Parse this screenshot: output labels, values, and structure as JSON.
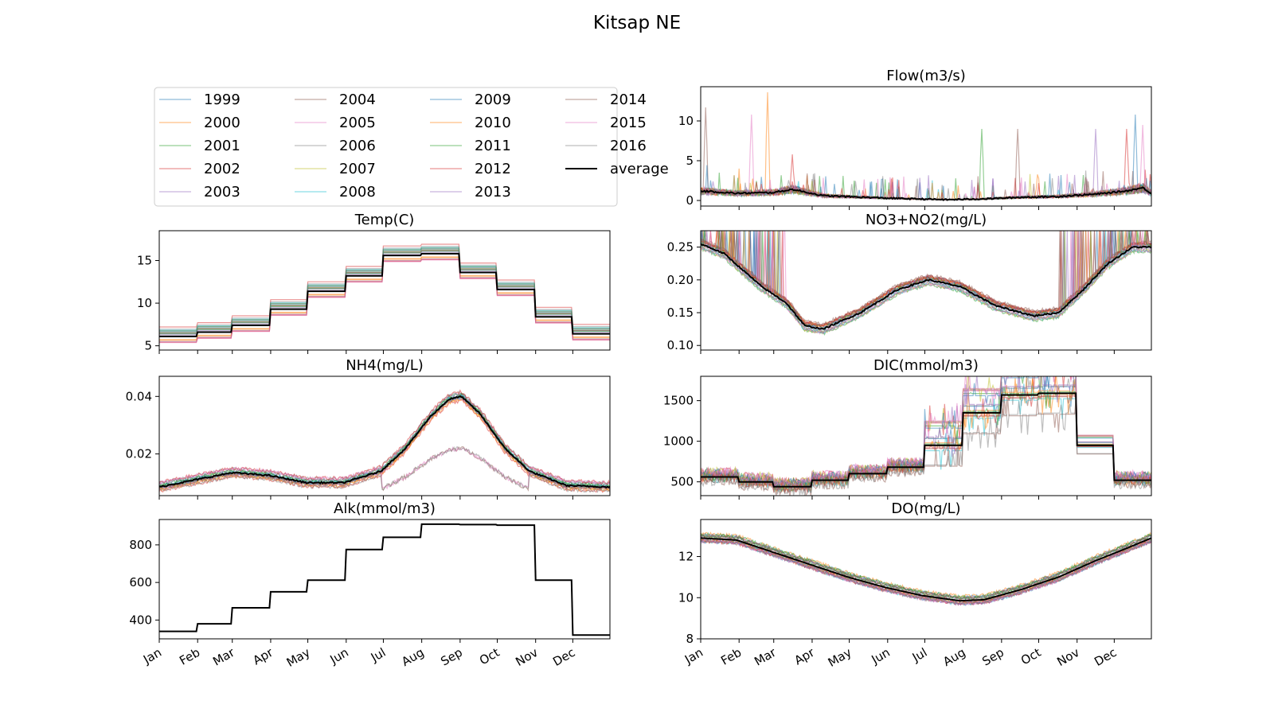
{
  "suptitle": "Kitsap NE",
  "chart_data": [
    {
      "panel": "legend",
      "type": "legend",
      "entries": [
        "1999",
        "2000",
        "2001",
        "2002",
        "2003",
        "2004",
        "2005",
        "2006",
        "2007",
        "2008",
        "2009",
        "2010",
        "2011",
        "2012",
        "2013",
        "2014",
        "2015",
        "2016",
        "average"
      ]
    },
    {
      "panel": "temp",
      "type": "line",
      "title": "Temp(C)",
      "ylim": [
        4.5,
        18.5
      ],
      "yticks": [
        5,
        10,
        15
      ],
      "x_unit": "day of year",
      "xlim": [
        1,
        365
      ],
      "average_steps": [
        6.1,
        6.6,
        7.4,
        9.3,
        11.4,
        13.2,
        15.6,
        15.8,
        13.6,
        11.6,
        8.4,
        6.4
      ],
      "year_spread": 1.4,
      "show_xticklabels": false
    },
    {
      "panel": "flow",
      "type": "line",
      "title": "Flow(m3/s)",
      "ylim": [
        -0.7,
        14.3
      ],
      "yticks": [
        0,
        5,
        10
      ],
      "x_unit": "day of year",
      "xlim": [
        1,
        365
      ],
      "average_profile": [
        [
          1,
          1.2
        ],
        [
          30,
          0.9
        ],
        [
          60,
          1.0
        ],
        [
          75,
          1.4
        ],
        [
          100,
          0.6
        ],
        [
          150,
          0.3
        ],
        [
          200,
          0.1
        ],
        [
          230,
          0.2
        ],
        [
          260,
          0.4
        ],
        [
          290,
          0.5
        ],
        [
          320,
          0.8
        ],
        [
          345,
          1.2
        ],
        [
          358,
          1.6
        ],
        [
          365,
          0.9
        ]
      ],
      "peaks": [
        [
          42,
          10.8
        ],
        [
          55,
          13.6
        ],
        [
          75,
          5.8
        ],
        [
          228,
          9.0
        ],
        [
          257,
          9.0
        ],
        [
          320,
          9.0
        ],
        [
          345,
          9.0
        ],
        [
          352,
          10.8
        ],
        [
          358,
          9.5
        ],
        [
          5,
          11.7
        ]
      ],
      "show_xticklabels": false
    },
    {
      "panel": "nh4",
      "type": "line",
      "title": "NH4(mg/L)",
      "ylim": [
        0.0055,
        0.047
      ],
      "yticks": [
        0.02,
        0.04
      ],
      "x_unit": "day of year",
      "xlim": [
        1,
        365
      ],
      "average_profile": [
        [
          1,
          0.0085
        ],
        [
          30,
          0.011
        ],
        [
          60,
          0.0135
        ],
        [
          90,
          0.0125
        ],
        [
          120,
          0.01
        ],
        [
          150,
          0.01
        ],
        [
          180,
          0.014
        ],
        [
          200,
          0.022
        ],
        [
          220,
          0.033
        ],
        [
          235,
          0.039
        ],
        [
          245,
          0.04
        ],
        [
          260,
          0.034
        ],
        [
          280,
          0.022
        ],
        [
          300,
          0.014
        ],
        [
          330,
          0.009
        ],
        [
          365,
          0.0085
        ]
      ],
      "show_xticklabels": false
    },
    {
      "panel": "no3",
      "type": "line",
      "title": "NO3+NO2(mg/L)",
      "ylim": [
        0.093,
        0.275
      ],
      "yticks": [
        0.1,
        0.15,
        0.2,
        0.25
      ],
      "x_unit": "day of year",
      "xlim": [
        1,
        365
      ],
      "average_profile": [
        [
          1,
          0.255
        ],
        [
          20,
          0.24
        ],
        [
          50,
          0.19
        ],
        [
          70,
          0.165
        ],
        [
          85,
          0.13
        ],
        [
          100,
          0.125
        ],
        [
          130,
          0.15
        ],
        [
          160,
          0.185
        ],
        [
          185,
          0.2
        ],
        [
          210,
          0.19
        ],
        [
          240,
          0.16
        ],
        [
          270,
          0.145
        ],
        [
          290,
          0.15
        ],
        [
          310,
          0.185
        ],
        [
          330,
          0.225
        ],
        [
          350,
          0.25
        ],
        [
          365,
          0.25
        ]
      ],
      "show_xticklabels": false
    },
    {
      "panel": "alk",
      "type": "line",
      "title": "Alk(mmol/m3)",
      "ylim": [
        300,
        935
      ],
      "yticks": [
        400,
        600,
        800
      ],
      "x_unit": "day of year",
      "xlim": [
        1,
        365
      ],
      "average_steps": [
        340,
        380,
        465,
        550,
        612,
        775,
        840,
        910,
        908,
        905,
        612,
        320
      ],
      "xtick_labels": [
        "Jan",
        "Feb",
        "Mar",
        "Apr",
        "May",
        "Jun",
        "Jul",
        "Aug",
        "Sep",
        "Oct",
        "Nov",
        "Dec"
      ],
      "show_xticklabels": true
    },
    {
      "panel": "dic",
      "type": "line",
      "title": "DIC(mmol/m3)",
      "ylim": [
        330,
        1800
      ],
      "yticks": [
        500,
        1000,
        1500
      ],
      "x_unit": "day of year",
      "xlim": [
        1,
        365
      ],
      "average_steps": [
        560,
        500,
        440,
        520,
        600,
        680,
        950,
        1350,
        1570,
        1590,
        950,
        520
      ],
      "show_xticklabels": false
    },
    {
      "panel": "do",
      "type": "line",
      "title": "DO(mg/L)",
      "ylim": [
        8,
        13.8
      ],
      "yticks": [
        8,
        10,
        12
      ],
      "x_unit": "day of year",
      "xlim": [
        1,
        365
      ],
      "average_profile": [
        [
          1,
          12.9
        ],
        [
          30,
          12.8
        ],
        [
          60,
          12.2
        ],
        [
          90,
          11.6
        ],
        [
          120,
          11.0
        ],
        [
          150,
          10.5
        ],
        [
          180,
          10.1
        ],
        [
          210,
          9.85
        ],
        [
          230,
          9.9
        ],
        [
          260,
          10.4
        ],
        [
          290,
          11.0
        ],
        [
          320,
          11.8
        ],
        [
          345,
          12.4
        ],
        [
          365,
          12.9
        ]
      ],
      "xtick_labels": [
        "Jan",
        "Feb",
        "Mar",
        "Apr",
        "May",
        "Jun",
        "Jul",
        "Aug",
        "Sep",
        "Oct",
        "Nov",
        "Dec"
      ],
      "show_xticklabels": true
    }
  ]
}
